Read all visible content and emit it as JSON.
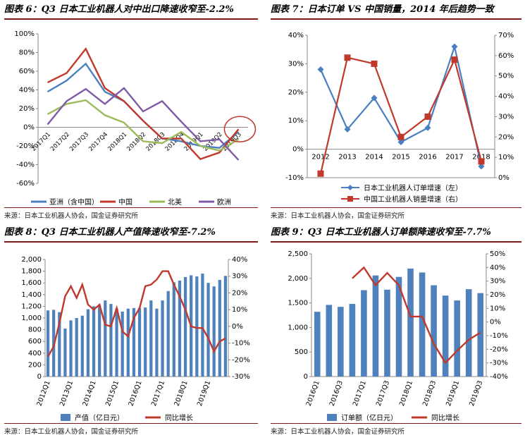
{
  "colors": {
    "red": "#c0392b",
    "blue": "#4a7fc1",
    "green": "#9bbb59",
    "purple": "#7e5ba6",
    "bar": "#4f81bd",
    "title_rule": "#7a1a1a"
  },
  "panels": [
    {
      "title": "图表 6：Q3 日本工业机器人对中出口降速收窄至-2.2%",
      "source": "来源：日本工业机器人协会，国金证券研究所"
    },
    {
      "title": "图表 7：日本订单 VS 中国销量，2014 年后趋势一致",
      "source": "来源：日本工业机器人协会，国金证券研究所"
    },
    {
      "title": "图表 8：Q3 日本工业机器人产值降速收窄至-7.2%",
      "source": "来源：日本工业机器人协会，国金证券研究所"
    },
    {
      "title": "图表 9：Q3 日本工业机器人订单额降速收窄至-7.7%",
      "source": "来源：日本工业机器人协会，国金证券研究所"
    }
  ],
  "chart_data": [
    {
      "type": "line",
      "x": [
        "2017Q1",
        "2017Q2",
        "2017Q3",
        "2017Q4",
        "2018Q1",
        "2018Q2",
        "2018Q3",
        "2018Q4",
        "2019Q1",
        "2019Q2",
        "2019Q3"
      ],
      "x_tick_labels": [
        "2017Q1",
        "2017Q2",
        "2017Q3",
        "2017Q4",
        "2018Q1",
        "2018Q2",
        "2018Q3",
        "2018Q4",
        "2019Q1",
        "2019Q2",
        "2019Q3"
      ],
      "y_ticks": [
        "100%",
        "80%",
        "60%",
        "40%",
        "20%",
        "0%",
        "-20%",
        "-40%",
        "-60%"
      ],
      "ylim": [
        -60,
        100
      ],
      "y_unit": "%",
      "series": [
        {
          "name": "亚洲（含中国）",
          "color": "blue",
          "values": [
            38,
            50,
            68,
            38,
            28,
            7,
            -12,
            -15,
            -20,
            -22,
            -5
          ]
        },
        {
          "name": "中国",
          "color": "red",
          "values": [
            48,
            58,
            84,
            42,
            28,
            7,
            -12,
            -12,
            -34,
            -27,
            -2
          ]
        },
        {
          "name": "北美",
          "color": "green",
          "values": [
            14,
            25,
            29,
            13,
            5,
            -15,
            -17,
            -5,
            -20,
            -25,
            -13
          ]
        },
        {
          "name": "欧洲",
          "color": "purple",
          "values": [
            3,
            28,
            41,
            25,
            42,
            17,
            28,
            6,
            -15,
            -13,
            -35
          ]
        }
      ],
      "annotation": "red circle around 2019Q3"
    },
    {
      "type": "line",
      "x": [
        "2012",
        "2013",
        "2014",
        "2015",
        "2016",
        "2017",
        "2018"
      ],
      "y_left_ticks": [
        "40%",
        "30%",
        "20%",
        "10%",
        "0%",
        "-10%"
      ],
      "y_right_ticks": [
        "70%",
        "60%",
        "50%",
        "40%",
        "30%",
        "20%",
        "10%",
        "0%"
      ],
      "ylim_left": [
        -10,
        40
      ],
      "ylim_right": [
        0,
        70
      ],
      "series": [
        {
          "name": "日本工业机器人订单增速（左）",
          "color": "blue",
          "marker": "diamond",
          "axis": "left",
          "values": [
            28,
            7,
            18,
            2.5,
            7.5,
            36,
            -6
          ]
        },
        {
          "name": "中国工业机器人销量增速（右）",
          "color": "red",
          "marker": "square",
          "axis": "right",
          "values": [
            2,
            59,
            56,
            20,
            30,
            58,
            8
          ]
        }
      ]
    },
    {
      "type": "bar",
      "x_tick_labels": [
        "2012Q1",
        "2013Q1",
        "2014Q1",
        "2015Q1",
        "2016Q1",
        "2017Q1",
        "2018Q1",
        "2019Q1"
      ],
      "x_tick_every": 4,
      "y_left_ticks": [
        "2,000",
        "1,800",
        "1,600",
        "1,400",
        "1,200",
        "1,000",
        "800",
        "600",
        "400",
        "200",
        "0"
      ],
      "y_right_ticks": [
        "40%",
        "30%",
        "20%",
        "10%",
        "0%",
        "-10%",
        "-20%",
        "-30%"
      ],
      "ylim_left": [
        0,
        2000
      ],
      "ylim_right": [
        -30,
        40
      ],
      "series": [
        {
          "name": "产值（亿日元）",
          "type": "bar",
          "color": "bar",
          "axis": "left",
          "values": [
            1130,
            1140,
            1100,
            820,
            960,
            1000,
            1040,
            1150,
            1200,
            1220,
            1300,
            1240,
            1160,
            1110,
            1160,
            1170,
            1170,
            1180,
            1300,
            1160,
            1300,
            1460,
            1610,
            1640,
            1700,
            1730,
            1710,
            1760,
            1600,
            1540,
            1650,
            1720
          ]
        },
        {
          "name": "同比增长",
          "type": "line",
          "color": "red",
          "axis": "right",
          "values": [
            -18,
            -12,
            2,
            18,
            24,
            17,
            25,
            13,
            10,
            13,
            1,
            0,
            11,
            -3,
            -6,
            5,
            11,
            24,
            25,
            28,
            33,
            33,
            25,
            18,
            10,
            0,
            -1,
            -1,
            -7,
            -15,
            -9,
            -7.2
          ]
        }
      ]
    },
    {
      "type": "bar",
      "x_tick_labels": [
        "2016Q1",
        "2016Q3",
        "2017Q1",
        "2017Q3",
        "2018Q1",
        "2018Q3",
        "2019Q1",
        "2019Q3"
      ],
      "y_left_ticks": [
        "2,500",
        "2,000",
        "1,500",
        "1,000",
        "500",
        "0"
      ],
      "y_right_ticks": [
        "50%",
        "40%",
        "30%",
        "20%",
        "10%",
        "0%",
        "-10%",
        "-20%",
        "-30%",
        "-40%"
      ],
      "ylim_left": [
        0,
        2500
      ],
      "ylim_right": [
        -40,
        50
      ],
      "series": [
        {
          "name": "订单额（亿日元）",
          "type": "bar",
          "color": "bar",
          "axis": "left",
          "values": [
            1320,
            1460,
            1420,
            1480,
            1760,
            2060,
            1770,
            2030,
            2200,
            2120,
            1860,
            1650,
            1550,
            1780,
            1700
          ]
        },
        {
          "name": "同比增长",
          "type": "line",
          "color": "red",
          "axis": "right",
          "values": [
            null,
            null,
            null,
            32,
            40,
            27,
            36,
            27,
            4,
            4,
            -16,
            -30,
            -21,
            -13,
            -7.7
          ]
        }
      ]
    }
  ]
}
